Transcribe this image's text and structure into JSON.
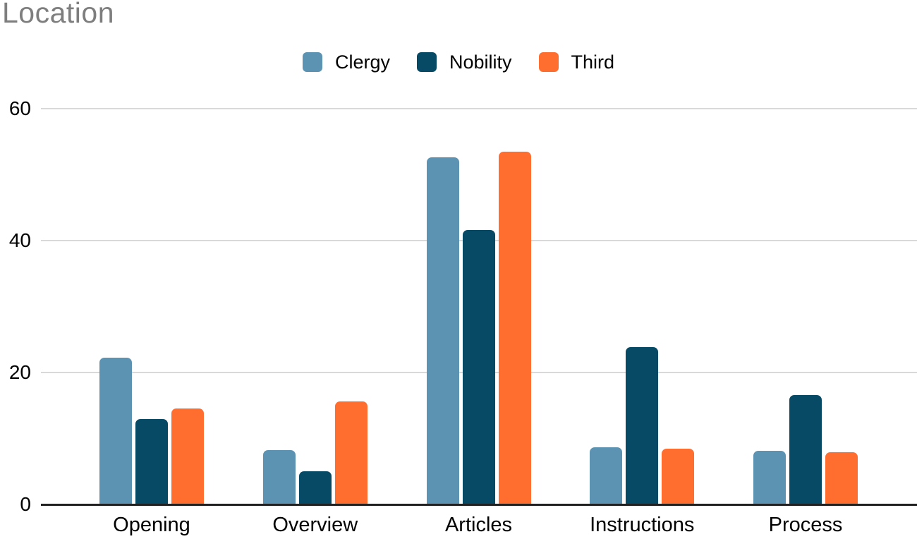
{
  "chart_data": {
    "type": "bar",
    "title": "Location",
    "title_color": "#7e7e7e",
    "categories": [
      "Opening",
      "Overview",
      "Articles",
      "Instructions",
      "Process"
    ],
    "series": [
      {
        "name": "Clergy",
        "color": "#5d93b2",
        "values": [
          22.2,
          8.2,
          52.6,
          8.7,
          8.1
        ]
      },
      {
        "name": "Nobility",
        "color": "#074a65",
        "values": [
          12.9,
          5.0,
          41.6,
          23.9,
          16.6
        ]
      },
      {
        "name": "Third",
        "color": "#ff6d2f",
        "values": [
          14.6,
          15.6,
          53.5,
          8.4,
          7.9
        ]
      }
    ],
    "xlabel": "",
    "ylabel": "",
    "ylim": [
      0,
      60
    ],
    "yticks": [
      0,
      20,
      40,
      60
    ],
    "grid": true,
    "gridline_color": "#d9d9d9",
    "axis_color": "#212121",
    "legend_position": "top-center",
    "legend_text_color": "#000000"
  }
}
